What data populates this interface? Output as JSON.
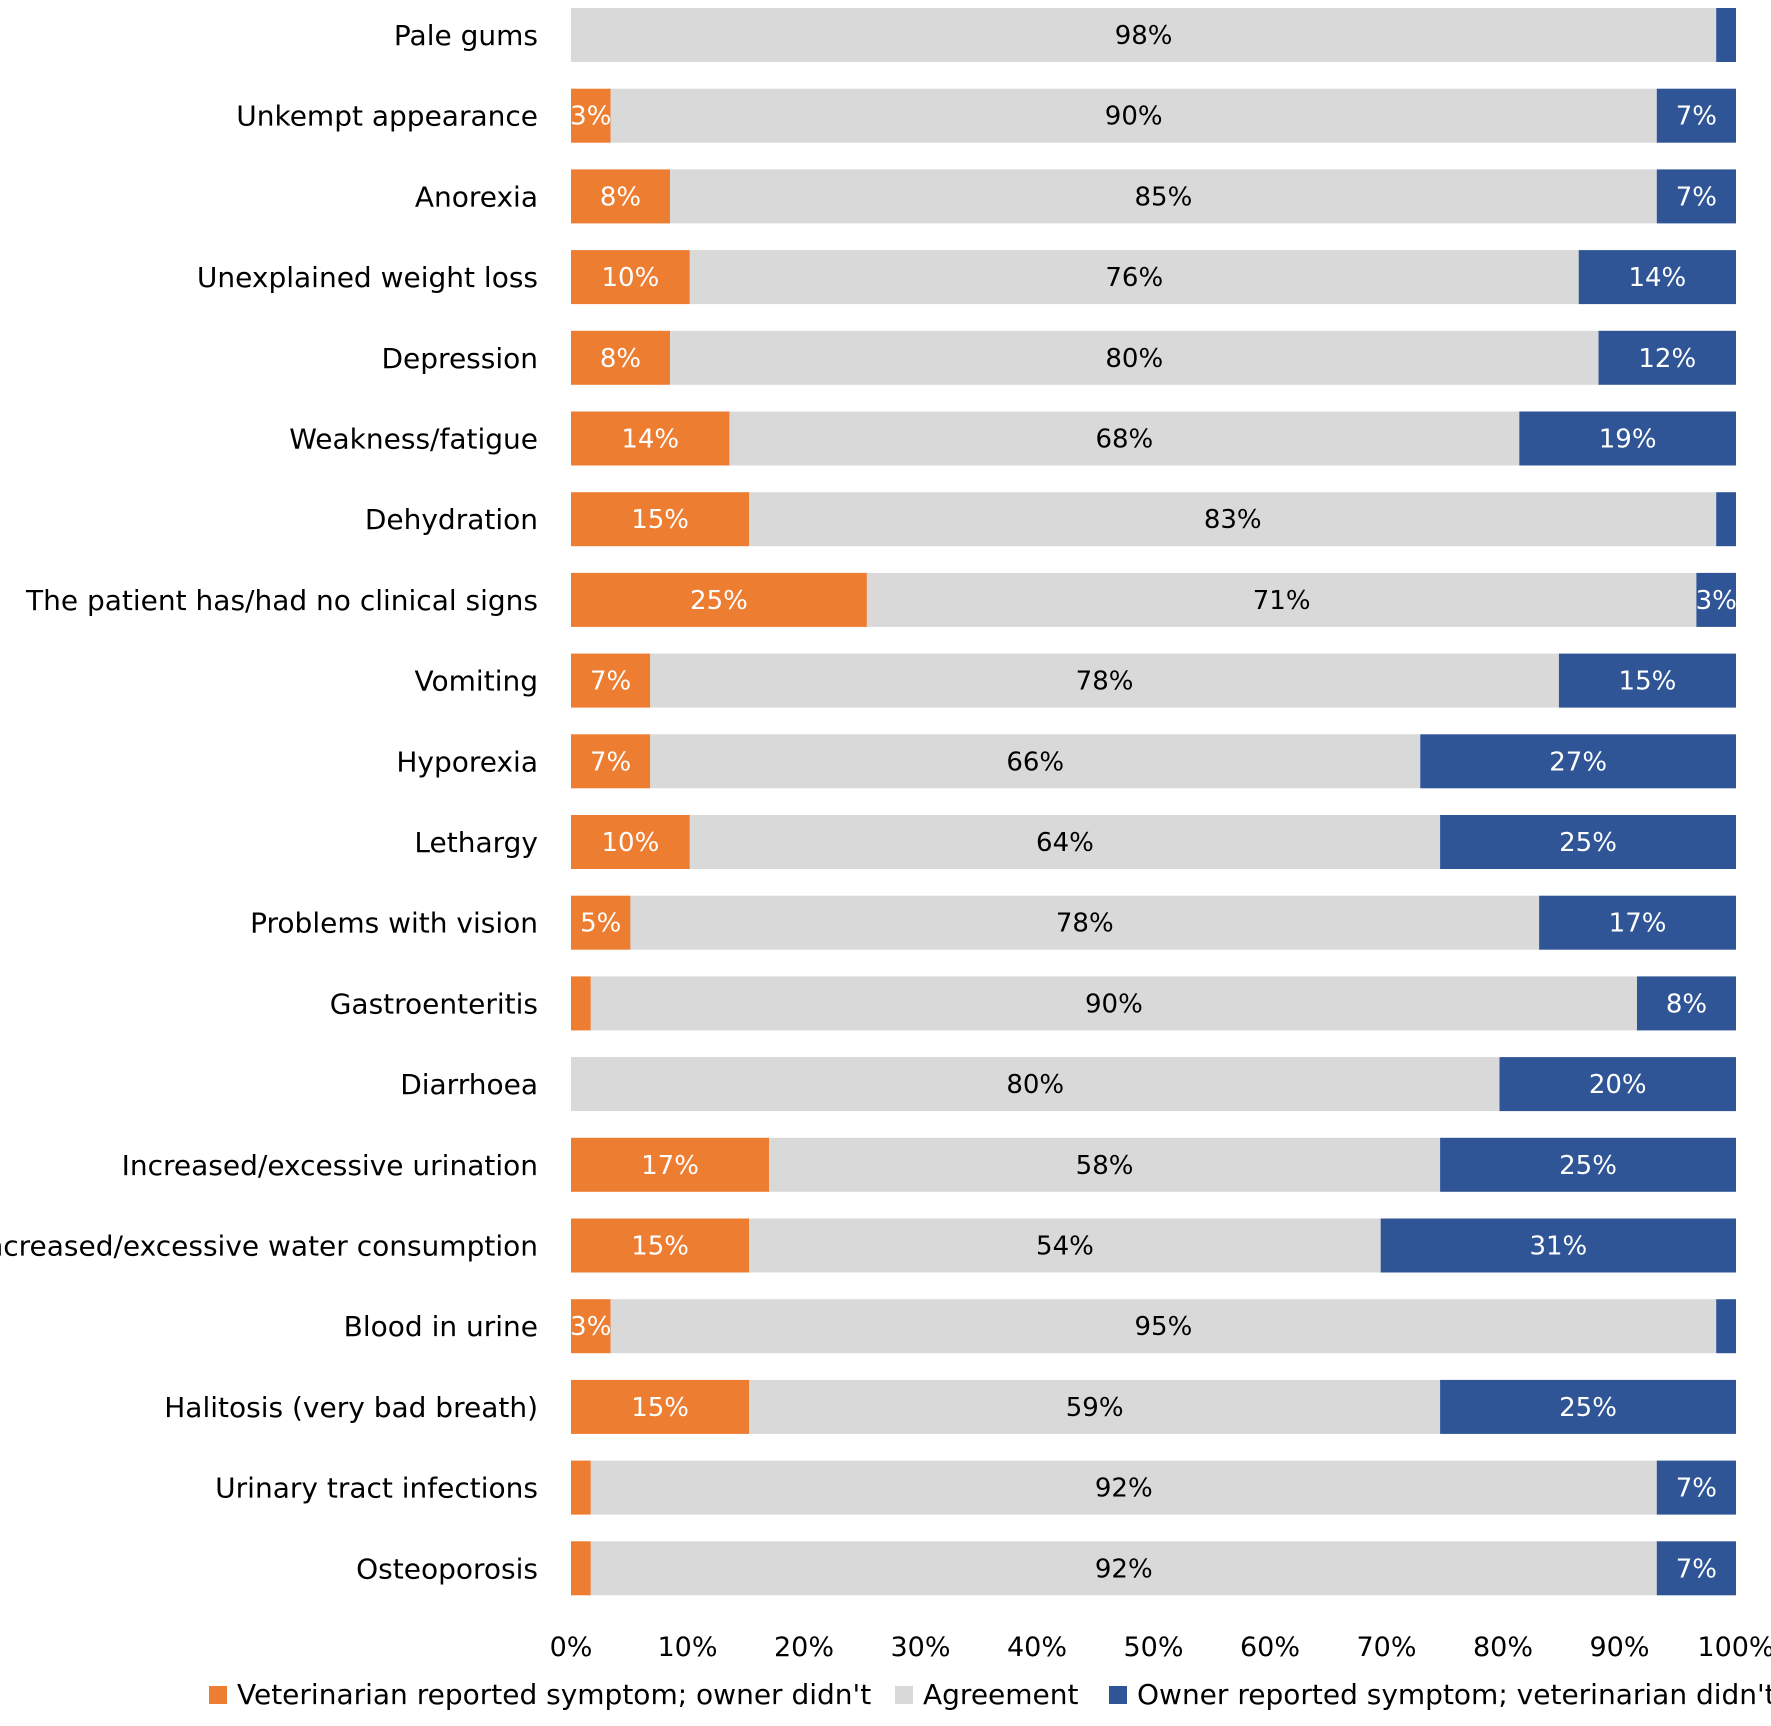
{
  "chart_data": {
    "type": "bar",
    "orientation": "horizontal",
    "stacked": "percent",
    "title": "",
    "xlabel": "",
    "ylabel": "",
    "xlim": [
      0,
      100
    ],
    "categories": [
      "Pale gums",
      "Unkempt appearance",
      "Anorexia",
      "Unexplained weight loss",
      "Depression",
      "Weakness/fatigue",
      "Dehydration",
      "The patient has/had no clinical signs",
      "Vomiting",
      "Hyporexia",
      "Lethargy",
      "Problems with vision",
      "Gastroenteritis",
      "Diarrhoea",
      "Increased/excessive urination",
      "Increased/excessive water consumption",
      "Blood in urine",
      "Halitosis (very bad breath)",
      "Urinary tract infections",
      "Osteoporosis"
    ],
    "series": [
      {
        "name": "Veterinarian reported symptom; owner didn't",
        "color": "#ED7D31",
        "label_color": "#FFFFFF",
        "values": [
          0,
          3.4,
          8.5,
          10.2,
          8.5,
          13.6,
          15.3,
          25.4,
          6.8,
          6.8,
          10.2,
          5.1,
          1.7,
          0,
          17,
          15.3,
          3.4,
          15.3,
          1.7,
          1.7
        ],
        "labels": [
          "",
          "3%",
          "8%",
          "10%",
          "8%",
          "14%",
          "15%",
          "25%",
          "7%",
          "7%",
          "10%",
          "5%",
          "",
          "",
          "17%",
          "15%",
          "3%",
          "15%",
          "",
          ""
        ]
      },
      {
        "name": "Agreement",
        "color": "#D9D9D9",
        "label_color": "#000000",
        "values": [
          98.3,
          89.8,
          84.7,
          76.3,
          79.7,
          67.8,
          83,
          71.2,
          78,
          66.1,
          64.4,
          78,
          89.8,
          79.7,
          57.6,
          54.2,
          94.9,
          59.3,
          91.5,
          91.5
        ],
        "labels": [
          "98%",
          "90%",
          "85%",
          "76%",
          "80%",
          "68%",
          "83%",
          "71%",
          "78%",
          "66%",
          "64%",
          "78%",
          "90%",
          "80%",
          "58%",
          "54%",
          "95%",
          "59%",
          "92%",
          "92%"
        ]
      },
      {
        "name": "Owner reported symptom; veterinarian didn't",
        "color": "#2F5597",
        "label_color": "#FFFFFF",
        "values": [
          1.7,
          6.8,
          6.8,
          13.5,
          11.8,
          18.6,
          1.7,
          3.4,
          15.2,
          27.1,
          25.4,
          16.9,
          8.5,
          20.3,
          25.4,
          30.5,
          1.7,
          25.4,
          6.8,
          6.8
        ],
        "labels": [
          "",
          "7%",
          "7%",
          "14%",
          "12%",
          "19%",
          "",
          "3%",
          "15%",
          "27%",
          "25%",
          "17%",
          "8%",
          "20%",
          "25%",
          "31%",
          "",
          "25%",
          "7%",
          "7%"
        ]
      }
    ],
    "x_ticks": [
      "0%",
      "10%",
      "20%",
      "30%",
      "40%",
      "50%",
      "60%",
      "70%",
      "80%",
      "90%",
      "100%"
    ],
    "grid": false,
    "legend_position": "bottom"
  }
}
